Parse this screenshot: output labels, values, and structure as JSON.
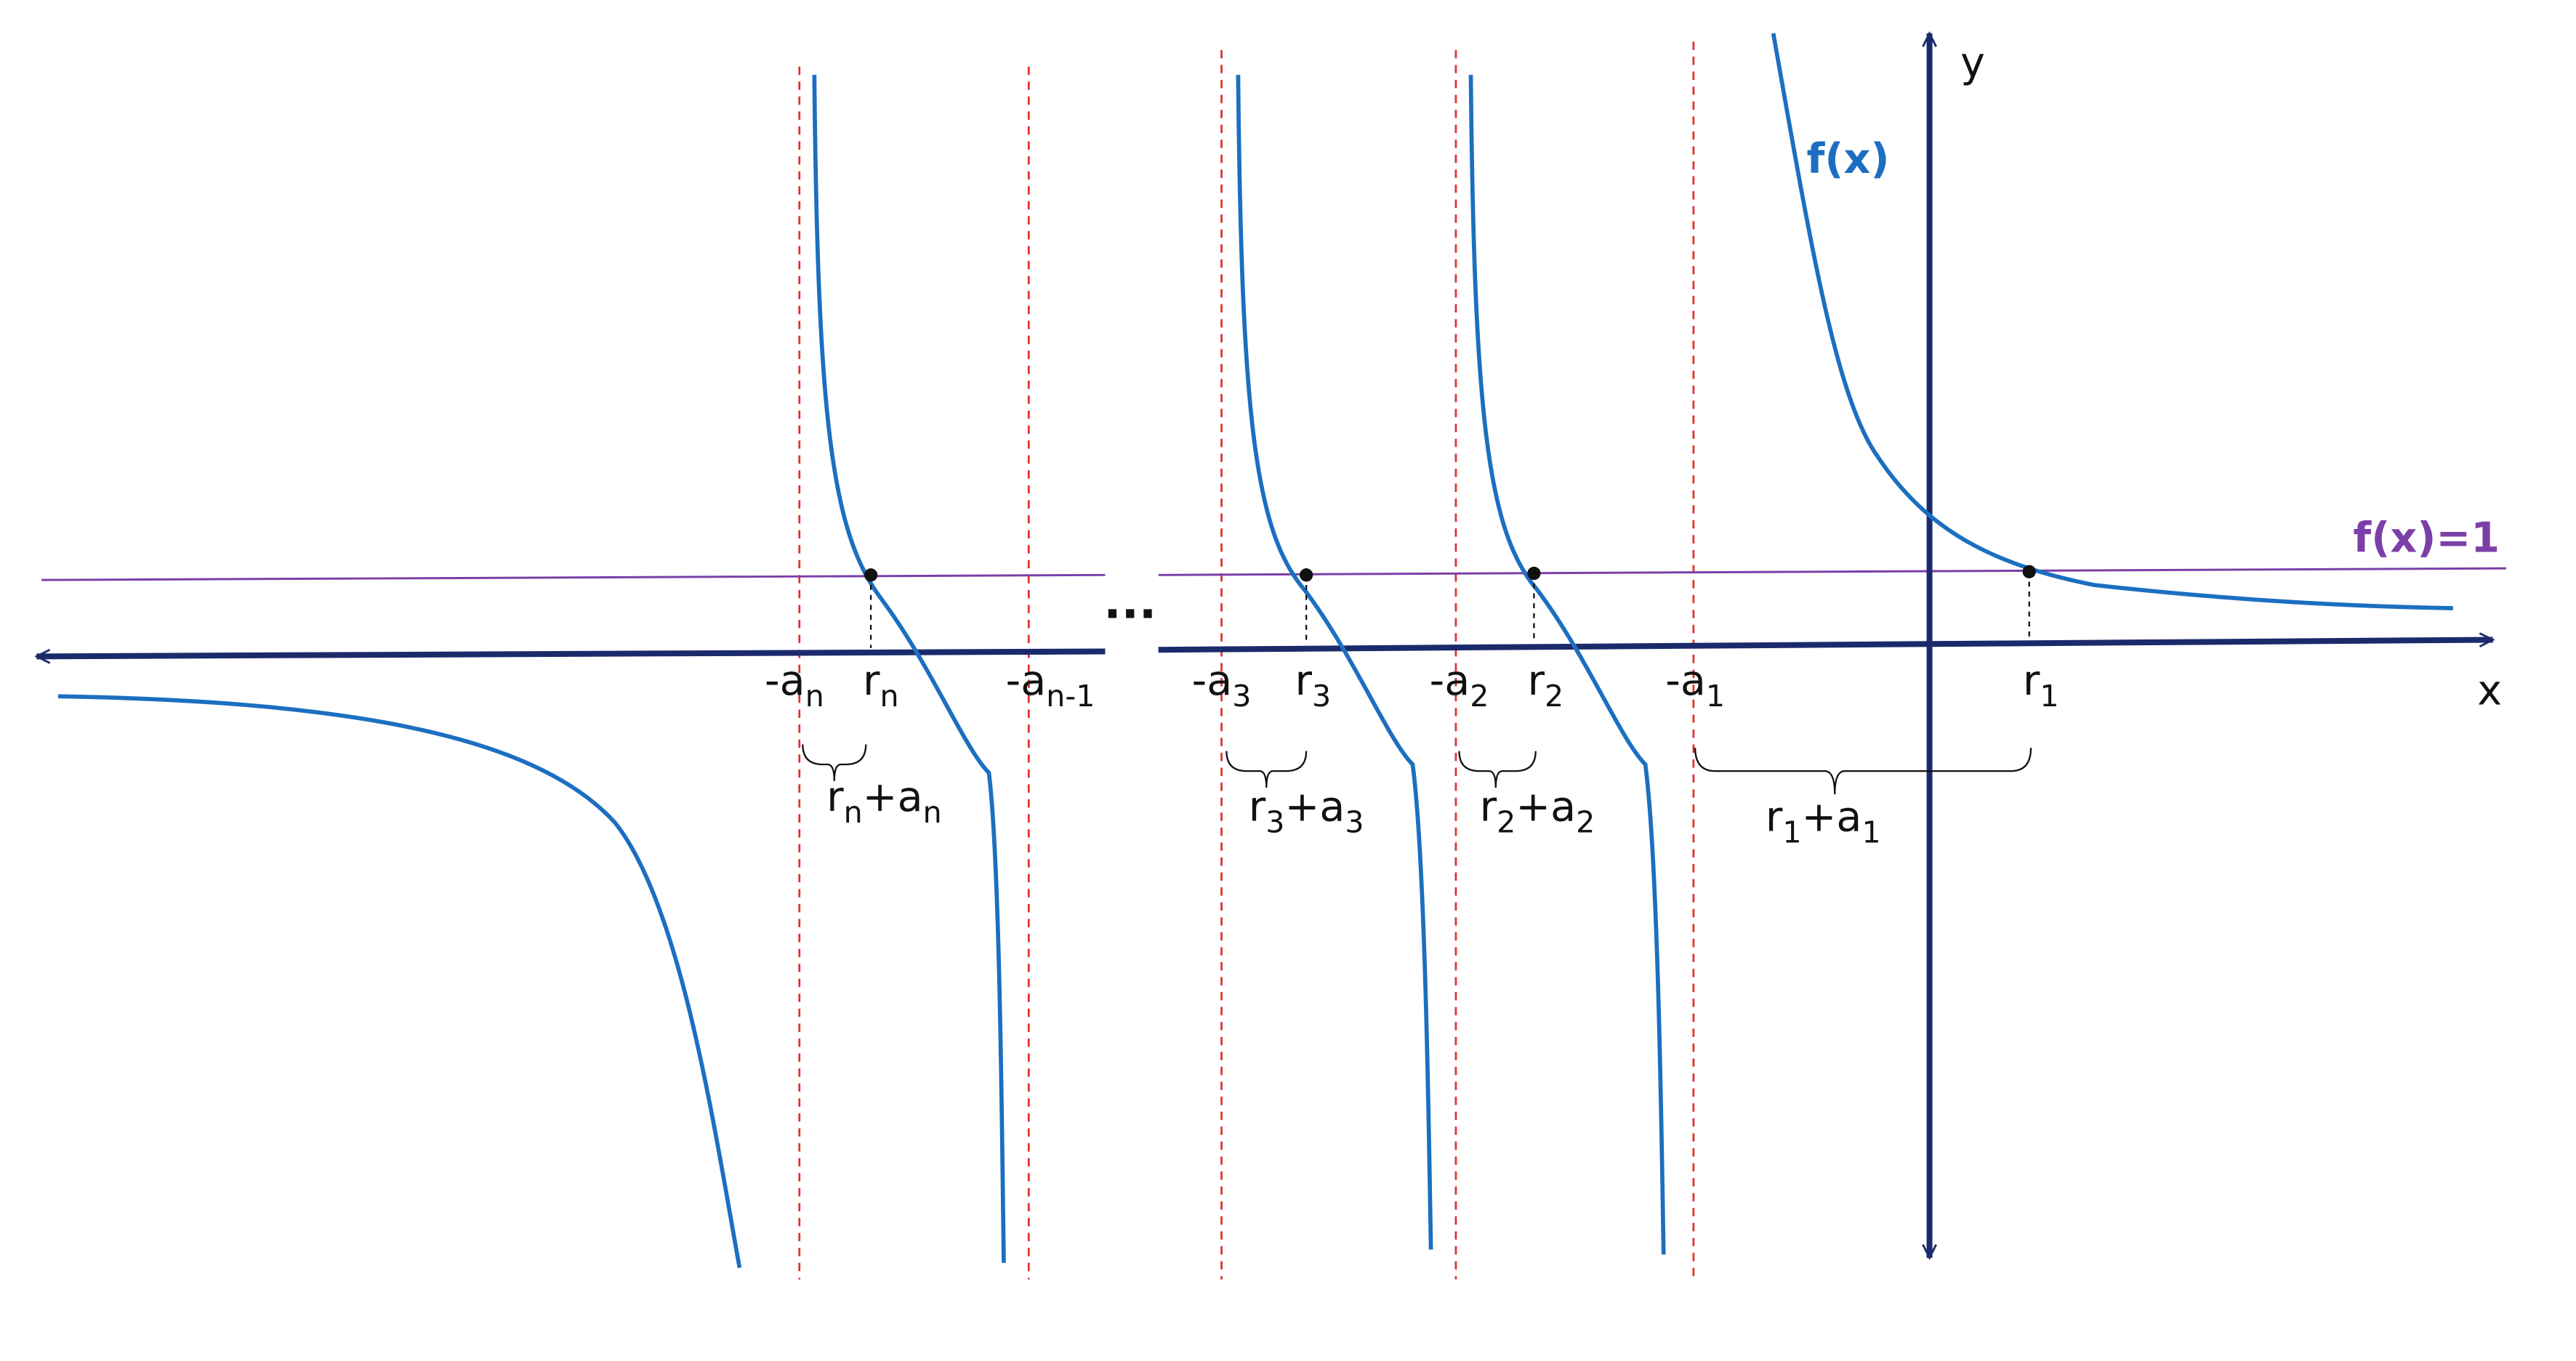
{
  "axes": {
    "x": "x",
    "y": "y"
  },
  "curve_label": "f(x)",
  "line_label": "f(x)=1",
  "ellipsis": "...",
  "ticks": [
    {
      "base": "-a",
      "sub": "n"
    },
    {
      "base": "r",
      "sub": "n"
    },
    {
      "base": "-a",
      "sub": "n-1"
    },
    {
      "base": "-a",
      "sub": "3"
    },
    {
      "base": "r",
      "sub": "3"
    },
    {
      "base": "-a",
      "sub": "2"
    },
    {
      "base": "r",
      "sub": "2"
    },
    {
      "base": "-a",
      "sub": "1"
    },
    {
      "base": "r",
      "sub": "1"
    }
  ],
  "braces": [
    [
      "r",
      "n",
      "+a",
      "n"
    ],
    [
      "r",
      "3",
      "+a",
      "3"
    ],
    [
      "r",
      "2",
      "+a",
      "2"
    ],
    [
      "r",
      "1",
      "+a",
      "1"
    ]
  ]
}
